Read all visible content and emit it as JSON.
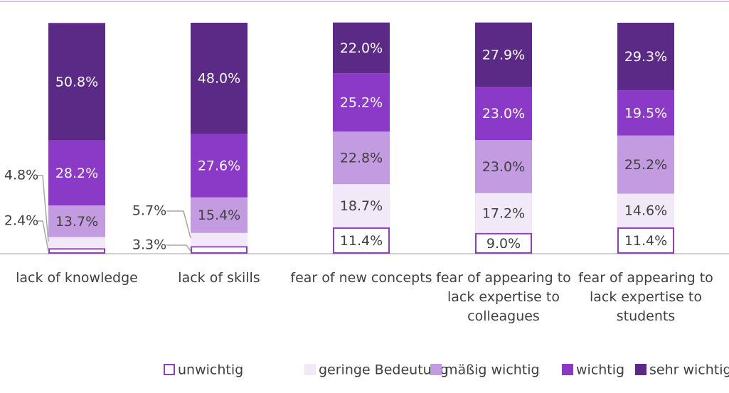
{
  "chart_data": {
    "type": "stacked_bar",
    "categories": [
      "lack of knowledge",
      "lack of skills",
      "fear of new concepts",
      "fear of appearing to lack expertise to colleagues",
      "fear of appearing to lack expertise to students"
    ],
    "ylim": [
      0,
      100
    ],
    "series": [
      {
        "name": "unwichtig",
        "color": "#ffffff",
        "stroke": "#8e3fc0",
        "label_color": "#404040",
        "values": [
          2.4,
          3.3,
          11.4,
          9.0,
          11.4
        ],
        "value_labels": [
          "2.4%",
          "3.3%",
          "11.4%",
          "9.0%",
          "11.4%"
        ]
      },
      {
        "name": "geringe Bedeutung",
        "color": "#f1e8f8",
        "label_color": "#404040",
        "values": [
          4.8,
          5.7,
          18.7,
          17.2,
          14.6
        ],
        "value_labels": [
          "4.8%",
          "5.7%",
          "18.7%",
          "17.2%",
          "14.6%"
        ]
      },
      {
        "name": "mäßig wichtig",
        "color": "#c39be0",
        "label_color": "#404040",
        "values": [
          13.7,
          15.4,
          22.8,
          23.0,
          25.2
        ],
        "value_labels": [
          "13.7%",
          "15.4%",
          "22.8%",
          "23.0%",
          "25.2%"
        ]
      },
      {
        "name": "wichtig",
        "color": "#8a3ac6",
        "label_color": "#ffffff",
        "values": [
          28.2,
          27.6,
          25.2,
          23.0,
          19.5
        ],
        "value_labels": [
          "28.2%",
          "27.6%",
          "25.2%",
          "23.0%",
          "19.5%"
        ]
      },
      {
        "name": "sehr wichtig",
        "color": "#5b2a86",
        "label_color": "#ffffff",
        "values": [
          50.8,
          48.0,
          22.0,
          27.9,
          29.3
        ],
        "value_labels": [
          "50.8%",
          "48.0%",
          "22.0%",
          "27.9%",
          "29.3%"
        ]
      }
    ]
  }
}
